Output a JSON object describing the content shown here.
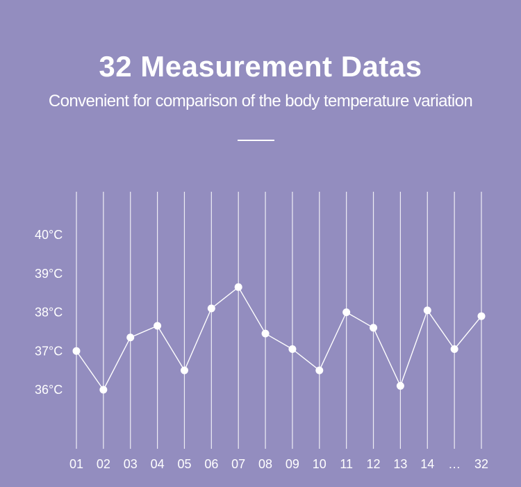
{
  "header": {
    "title": "32 Measurement Datas",
    "subtitle": "Convenient for comparison of the body temperature variation"
  },
  "chart_data": {
    "type": "line",
    "title": "32 Measurement Datas",
    "subtitle": "Convenient for comparison of the body temperature variation",
    "xlabel": "",
    "ylabel": "",
    "categories": [
      "01",
      "02",
      "03",
      "04",
      "05",
      "06",
      "07",
      "08",
      "09",
      "10",
      "11",
      "12",
      "13",
      "14",
      "…",
      "32"
    ],
    "values": [
      37.0,
      36.0,
      37.35,
      37.65,
      36.5,
      38.1,
      38.65,
      37.45,
      37.05,
      36.5,
      38.0,
      37.6,
      36.1,
      38.05,
      37.05,
      37.9
    ],
    "y_ticks": [
      36,
      37,
      38,
      39,
      40
    ],
    "y_tick_labels": [
      "36°C",
      "37°C",
      "38°C",
      "39°C",
      "40°C"
    ],
    "ylim": [
      36,
      40
    ],
    "unit": "°C",
    "grid": "vertical",
    "legend": "none",
    "colors": {
      "background": "#938dbf",
      "line": "#ffffff",
      "gridline": "#ffffff"
    }
  }
}
